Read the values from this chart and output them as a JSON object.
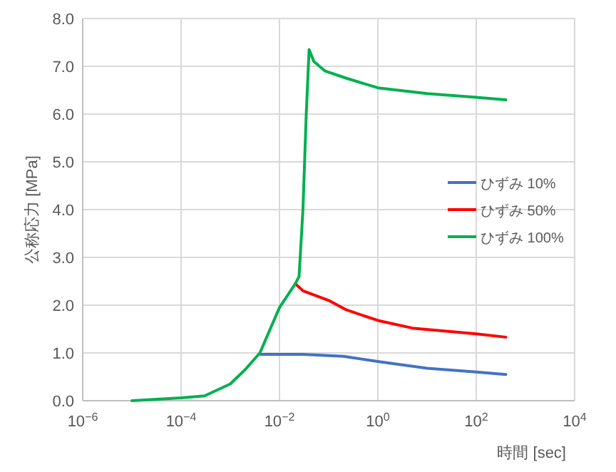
{
  "chart_data": {
    "type": "line",
    "xlabel": "時間 [sec]",
    "ylabel": "公称応力 [MPa]",
    "log": "x",
    "xlim": [
      1e-06,
      10000
    ],
    "xticks": [
      {
        "value": 1e-06,
        "label": "10$^{−6}$"
      },
      {
        "value": 0.0001,
        "label": "10$^{−4}$"
      },
      {
        "value": 0.01,
        "label": "10$^{−2}$"
      },
      {
        "value": 1,
        "label": "10$^{0}$"
      },
      {
        "value": 100,
        "label": "10$^{2}$"
      },
      {
        "value": 10000,
        "label": "10$^{4}$"
      }
    ],
    "ylim": [
      0,
      8
    ],
    "yticks": [
      {
        "value": 0,
        "label": "0.0"
      },
      {
        "value": 1,
        "label": "1.0"
      },
      {
        "value": 2,
        "label": "2.0"
      },
      {
        "value": 3,
        "label": "3.0"
      },
      {
        "value": 4,
        "label": "4.0"
      },
      {
        "value": 5,
        "label": "5.0"
      },
      {
        "value": 6,
        "label": "6.0"
      },
      {
        "value": 7,
        "label": "7.0"
      },
      {
        "value": 8,
        "label": "8.0"
      }
    ],
    "grid": true,
    "legend": "right",
    "marker": "none",
    "line_style": "solid",
    "series": [
      {
        "name": "ひずみ 10%",
        "color": "#4472c4",
        "x": [
          0.0042,
          0.03,
          0.2,
          1,
          10,
          100,
          400
        ],
        "values": [
          0.97,
          0.97,
          0.93,
          0.82,
          0.68,
          0.6,
          0.55
        ]
      },
      {
        "name": "ひずみ 50%",
        "color": "#ff0000",
        "x": [
          0.021,
          0.03,
          0.1,
          0.23,
          1,
          5,
          100,
          400
        ],
        "values": [
          2.45,
          2.3,
          2.1,
          1.9,
          1.68,
          1.52,
          1.4,
          1.33
        ]
      },
      {
        "name": "ひずみ 100%",
        "color": "#00b050",
        "x": [
          1e-05,
          0.0001,
          0.0003,
          0.001,
          0.002,
          0.004,
          0.01,
          0.021,
          0.025,
          0.03,
          0.035,
          0.04,
          0.05,
          0.085,
          0.23,
          1,
          10,
          100,
          400
        ],
        "values": [
          0,
          0.06,
          0.1,
          0.35,
          0.65,
          1.0,
          1.95,
          2.45,
          2.6,
          4.0,
          6.0,
          7.35,
          7.1,
          6.9,
          6.75,
          6.55,
          6.43,
          6.35,
          6.3
        ]
      }
    ]
  }
}
